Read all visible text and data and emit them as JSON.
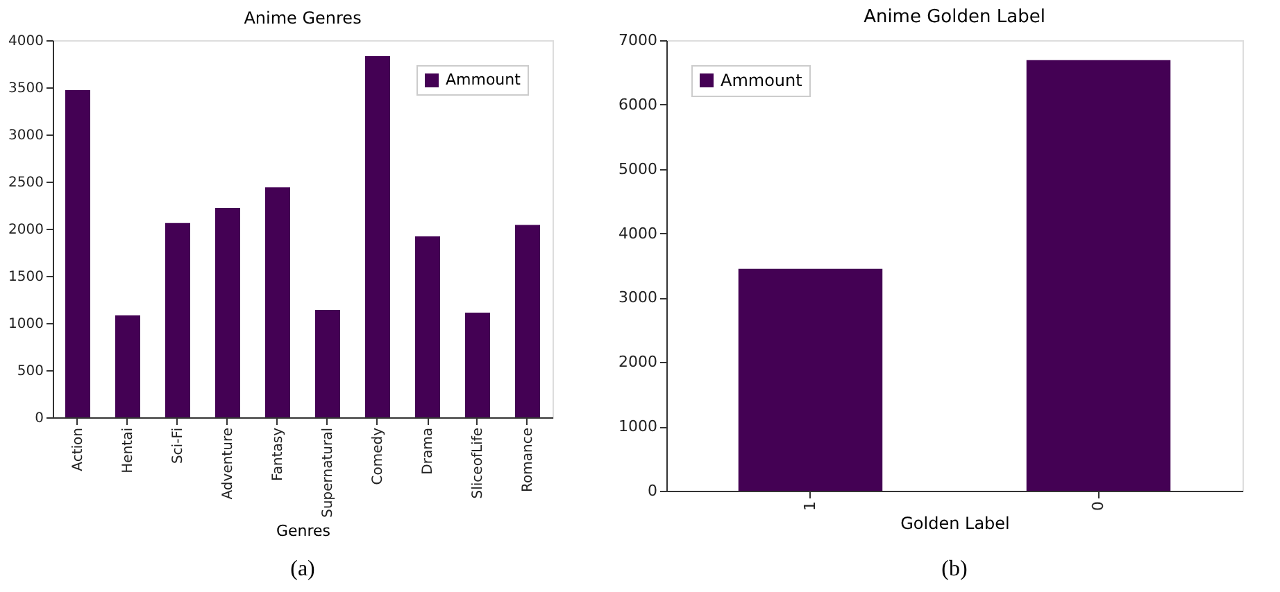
{
  "chart_data": [
    {
      "type": "bar",
      "title": "Anime Genres",
      "xlabel": "Genres",
      "categories": [
        "Action",
        "Hentai",
        "Sci-Fi",
        "Adventure",
        "Fantasy",
        "Supernatural",
        "Comedy",
        "Drama",
        "SliceofLife",
        "Romance"
      ],
      "series": [
        {
          "name": "Ammount",
          "color": "#440154",
          "values": [
            3470,
            1080,
            2060,
            2220,
            2440,
            1140,
            3830,
            1920,
            1110,
            2040
          ]
        }
      ],
      "ylim": [
        0,
        4000
      ],
      "yticks": [
        0,
        500,
        1000,
        1500,
        2000,
        2500,
        3000,
        3500,
        4000
      ],
      "grid": false,
      "legend": "top right",
      "annotations": [
        "(a)"
      ]
    },
    {
      "type": "bar",
      "title": "Anime Golden Label",
      "xlabel": "Golden Label",
      "categories": [
        "1",
        "0"
      ],
      "series": [
        {
          "name": "Ammount",
          "color": "#440154",
          "values": [
            3450,
            6690
          ]
        }
      ],
      "ylim": [
        0,
        7000
      ],
      "yticks": [
        0,
        1000,
        2000,
        3000,
        4000,
        5000,
        6000,
        7000
      ],
      "grid": false,
      "legend": "top left",
      "annotations": [
        "(b)"
      ]
    }
  ]
}
